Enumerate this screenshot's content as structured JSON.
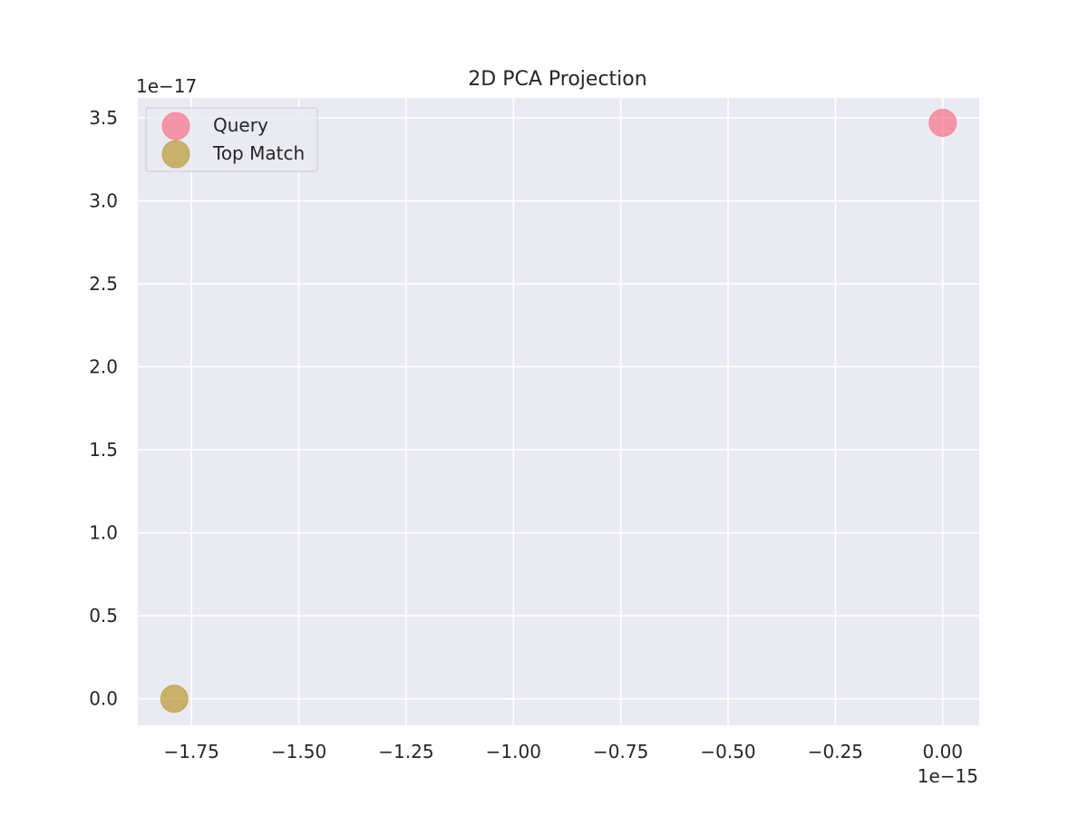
{
  "chart_data": {
    "type": "scatter",
    "title": "2D PCA Projection",
    "xlabel": "",
    "ylabel": "",
    "x_offset_label": "1e−15",
    "y_offset_label": "1e−17",
    "xlim": [
      -1.875,
      0.085
    ],
    "ylim": [
      -0.16,
      3.62
    ],
    "x_ticks": [
      -1.75,
      -1.5,
      -1.25,
      -1.0,
      -0.75,
      -0.5,
      -0.25,
      0.0
    ],
    "x_tick_labels": [
      "−1.75",
      "−1.50",
      "−1.25",
      "−1.00",
      "−0.75",
      "−0.50",
      "−0.25",
      "0.00"
    ],
    "y_ticks": [
      0.0,
      0.5,
      1.0,
      1.5,
      2.0,
      2.5,
      3.0,
      3.5
    ],
    "y_tick_labels": [
      "0.0",
      "0.5",
      "1.0",
      "1.5",
      "2.0",
      "2.5",
      "3.0",
      "3.5"
    ],
    "grid": true,
    "legend_position": "top-left",
    "series": [
      {
        "name": "Query",
        "color": "#f77189",
        "points": [
          {
            "x": 0.0,
            "y": 3.47
          }
        ]
      },
      {
        "name": "Top Match",
        "color": "#bb9832",
        "points": [
          {
            "x": -1.79,
            "y": 0.0
          }
        ]
      }
    ]
  }
}
